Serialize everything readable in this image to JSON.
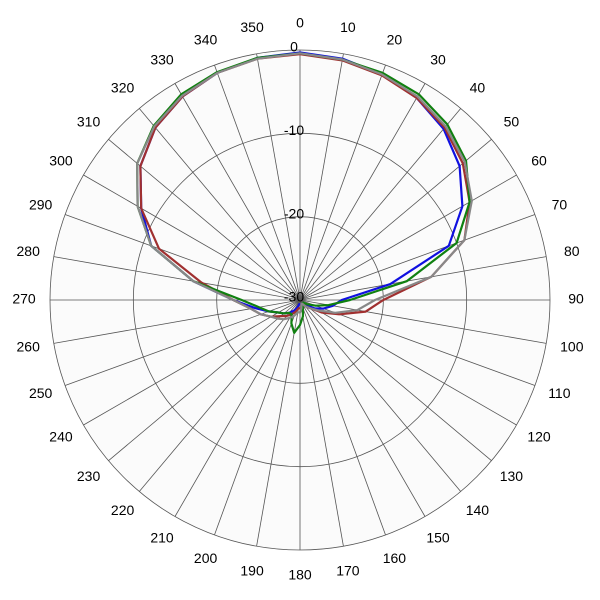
{
  "chart_data": {
    "type": "polar",
    "rlim": [
      -30,
      0
    ],
    "rticks": [
      0,
      -10,
      -20,
      -30
    ],
    "theta": [
      0,
      10,
      20,
      30,
      40,
      50,
      60,
      70,
      80,
      90,
      100,
      110,
      120,
      130,
      140,
      150,
      160,
      170,
      180,
      190,
      200,
      210,
      220,
      230,
      240,
      250,
      260,
      270,
      280,
      290,
      300,
      310,
      320,
      330,
      340,
      350
    ],
    "grid": true,
    "series": [
      {
        "color": "#1010e0",
        "values": [
          -0.3,
          -0.6,
          -1.2,
          -2,
          -3.2,
          -5,
          -7.5,
          -11,
          -19,
          -25,
          -26,
          -27,
          -28,
          -29,
          -29.5,
          -29.5,
          -29.5,
          -29.5,
          -29.5,
          -29.5,
          -29,
          -28.5,
          -28,
          -27.5,
          -27,
          -26,
          -24.5,
          -22,
          -17,
          -11,
          -8,
          -5,
          -3,
          -1.8,
          -1,
          -0.5
        ]
      },
      {
        "color": "#a03030",
        "values": [
          -0.5,
          -0.8,
          -1.3,
          -2,
          -3,
          -4.5,
          -6.5,
          -9,
          -14,
          -20,
          -22,
          -25,
          -27,
          -28.5,
          -29,
          -29.5,
          -29.5,
          -29,
          -29,
          -29,
          -28.5,
          -28,
          -27.5,
          -27,
          -26,
          -25,
          -24,
          -22,
          -18,
          -12,
          -8,
          -5,
          -3,
          -1.8,
          -1,
          -0.6
        ]
      },
      {
        "color": "#108010",
        "values": [
          -0.4,
          -0.7,
          -1,
          -1.5,
          -2.5,
          -4,
          -6.5,
          -10,
          -17,
          -24,
          -26.5,
          -28,
          -29,
          -29.5,
          -29.5,
          -29.5,
          -29,
          -28,
          -27,
          -26,
          -27,
          -28,
          -28,
          -27.5,
          -27,
          -26,
          -25,
          -23,
          -17,
          -11,
          -7.5,
          -4.5,
          -2.7,
          -1.5,
          -0.9,
          -0.5
        ]
      },
      {
        "color": "#888888",
        "values": [
          -0.4,
          -0.7,
          -1.2,
          -1.8,
          -2.8,
          -4.2,
          -6.2,
          -9,
          -14,
          -21,
          -23,
          -25.5,
          -27.5,
          -28.5,
          -29,
          -29.5,
          -29.5,
          -29,
          -28.5,
          -28.5,
          -28,
          -27.5,
          -27,
          -26.5,
          -26,
          -25,
          -24,
          -22,
          -17,
          -11,
          -7.5,
          -4.5,
          -2.8,
          -1.7,
          -1,
          -0.6
        ]
      }
    ]
  }
}
